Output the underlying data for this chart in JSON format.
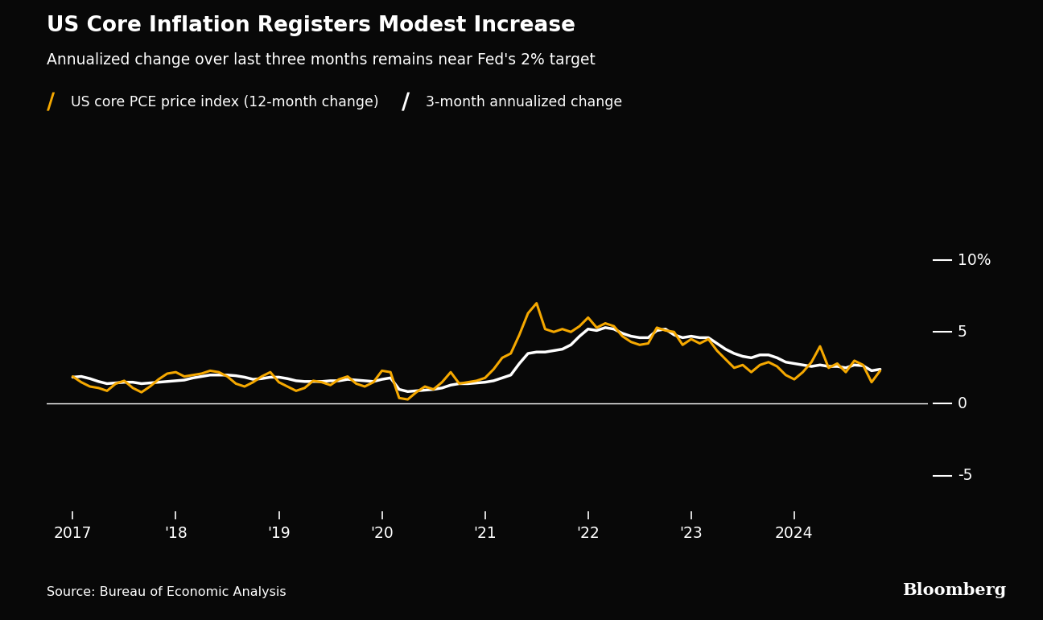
{
  "title": "US Core Inflation Registers Modest Increase",
  "subtitle": "Annualized change over last three months remains near Fed's 2% target",
  "source": "Source: Bureau of Economic Analysis",
  "bloomberg": "Bloomberg",
  "legend1": "US core PCE price index (12-month change)",
  "legend2": "3-month annualized change",
  "bg_color": "#080808",
  "title_color": "#ffffff",
  "line1_color": "#f5a800",
  "line2_color": "#ffffff",
  "axis_color": "#ffffff",
  "ytick_labels": [
    "10%",
    "5",
    "0",
    "-5"
  ],
  "ytick_values": [
    10,
    5,
    0,
    -5
  ],
  "ylim": [
    -7.5,
    13.0
  ],
  "xlim_start": 2016.75,
  "xlim_end": 2025.3,
  "xtick_positions": [
    2017.0,
    2018.0,
    2019.0,
    2020.0,
    2021.0,
    2022.0,
    2023.0,
    2024.0
  ],
  "xtick_labels": [
    "2017",
    "'18",
    "'19",
    "'20",
    "'21",
    "'22",
    "'23",
    "2024"
  ],
  "pce_dates": [
    2017.0,
    2017.083,
    2017.167,
    2017.25,
    2017.333,
    2017.417,
    2017.5,
    2017.583,
    2017.667,
    2017.75,
    2017.833,
    2017.917,
    2018.0,
    2018.083,
    2018.167,
    2018.25,
    2018.333,
    2018.417,
    2018.5,
    2018.583,
    2018.667,
    2018.75,
    2018.833,
    2018.917,
    2019.0,
    2019.083,
    2019.167,
    2019.25,
    2019.333,
    2019.417,
    2019.5,
    2019.583,
    2019.667,
    2019.75,
    2019.833,
    2019.917,
    2020.0,
    2020.083,
    2020.167,
    2020.25,
    2020.333,
    2020.417,
    2020.5,
    2020.583,
    2020.667,
    2020.75,
    2020.833,
    2020.917,
    2021.0,
    2021.083,
    2021.167,
    2021.25,
    2021.333,
    2021.417,
    2021.5,
    2021.583,
    2021.667,
    2021.75,
    2021.833,
    2021.917,
    2022.0,
    2022.083,
    2022.167,
    2022.25,
    2022.333,
    2022.417,
    2022.5,
    2022.583,
    2022.667,
    2022.75,
    2022.833,
    2022.917,
    2023.0,
    2023.083,
    2023.167,
    2023.25,
    2023.333,
    2023.417,
    2023.5,
    2023.583,
    2023.667,
    2023.75,
    2023.833,
    2023.917,
    2024.0,
    2024.083,
    2024.167,
    2024.25,
    2024.333,
    2024.417,
    2024.5,
    2024.583,
    2024.667,
    2024.75,
    2024.833
  ],
  "pce_values": [
    1.85,
    1.9,
    1.75,
    1.55,
    1.4,
    1.45,
    1.5,
    1.5,
    1.4,
    1.45,
    1.5,
    1.55,
    1.6,
    1.65,
    1.8,
    1.9,
    2.0,
    2.0,
    2.0,
    1.95,
    1.85,
    1.7,
    1.75,
    1.85,
    1.85,
    1.75,
    1.6,
    1.55,
    1.55,
    1.55,
    1.6,
    1.6,
    1.7,
    1.65,
    1.6,
    1.55,
    1.7,
    1.8,
    1.0,
    0.85,
    0.9,
    0.95,
    1.0,
    1.1,
    1.3,
    1.4,
    1.4,
    1.45,
    1.5,
    1.6,
    1.8,
    2.0,
    2.8,
    3.5,
    3.6,
    3.6,
    3.7,
    3.8,
    4.1,
    4.7,
    5.2,
    5.1,
    5.3,
    5.2,
    4.9,
    4.7,
    4.6,
    4.6,
    5.1,
    5.2,
    4.8,
    4.6,
    4.7,
    4.6,
    4.6,
    4.2,
    3.8,
    3.5,
    3.3,
    3.2,
    3.4,
    3.4,
    3.2,
    2.9,
    2.8,
    2.7,
    2.6,
    2.7,
    2.6,
    2.6,
    2.5,
    2.7,
    2.65,
    2.3,
    2.4
  ],
  "ann3m_dates": [
    2017.0,
    2017.083,
    2017.167,
    2017.25,
    2017.333,
    2017.417,
    2017.5,
    2017.583,
    2017.667,
    2017.75,
    2017.833,
    2017.917,
    2018.0,
    2018.083,
    2018.167,
    2018.25,
    2018.333,
    2018.417,
    2018.5,
    2018.583,
    2018.667,
    2018.75,
    2018.833,
    2018.917,
    2019.0,
    2019.083,
    2019.167,
    2019.25,
    2019.333,
    2019.417,
    2019.5,
    2019.583,
    2019.667,
    2019.75,
    2019.833,
    2019.917,
    2020.0,
    2020.083,
    2020.167,
    2020.25,
    2020.333,
    2020.417,
    2020.5,
    2020.583,
    2020.667,
    2020.75,
    2020.833,
    2020.917,
    2021.0,
    2021.083,
    2021.167,
    2021.25,
    2021.333,
    2021.417,
    2021.5,
    2021.583,
    2021.667,
    2021.75,
    2021.833,
    2021.917,
    2022.0,
    2022.083,
    2022.167,
    2022.25,
    2022.333,
    2022.417,
    2022.5,
    2022.583,
    2022.667,
    2022.75,
    2022.833,
    2022.917,
    2023.0,
    2023.083,
    2023.167,
    2023.25,
    2023.333,
    2023.417,
    2023.5,
    2023.583,
    2023.667,
    2023.75,
    2023.833,
    2023.917,
    2024.0,
    2024.083,
    2024.167,
    2024.25,
    2024.333,
    2024.417,
    2024.5,
    2024.583,
    2024.667,
    2024.75,
    2024.833
  ],
  "ann3m_values": [
    1.9,
    1.5,
    1.2,
    1.1,
    0.9,
    1.4,
    1.6,
    1.1,
    0.8,
    1.2,
    1.7,
    2.1,
    2.2,
    1.9,
    2.0,
    2.1,
    2.3,
    2.2,
    1.9,
    1.4,
    1.2,
    1.5,
    1.9,
    2.2,
    1.5,
    1.2,
    0.9,
    1.1,
    1.6,
    1.5,
    1.3,
    1.7,
    1.9,
    1.4,
    1.2,
    1.5,
    2.3,
    2.2,
    0.4,
    0.3,
    0.8,
    1.2,
    1.0,
    1.5,
    2.2,
    1.4,
    1.5,
    1.6,
    1.8,
    2.4,
    3.2,
    3.5,
    4.8,
    6.3,
    7.0,
    5.2,
    5.0,
    5.2,
    5.0,
    5.4,
    6.0,
    5.3,
    5.6,
    5.4,
    4.7,
    4.3,
    4.1,
    4.2,
    5.3,
    5.1,
    5.0,
    4.1,
    4.5,
    4.2,
    4.5,
    3.7,
    3.1,
    2.5,
    2.7,
    2.2,
    2.7,
    2.9,
    2.6,
    2.0,
    1.7,
    2.2,
    2.9,
    4.0,
    2.5,
    2.8,
    2.2,
    3.0,
    2.7,
    1.5,
    2.3
  ]
}
